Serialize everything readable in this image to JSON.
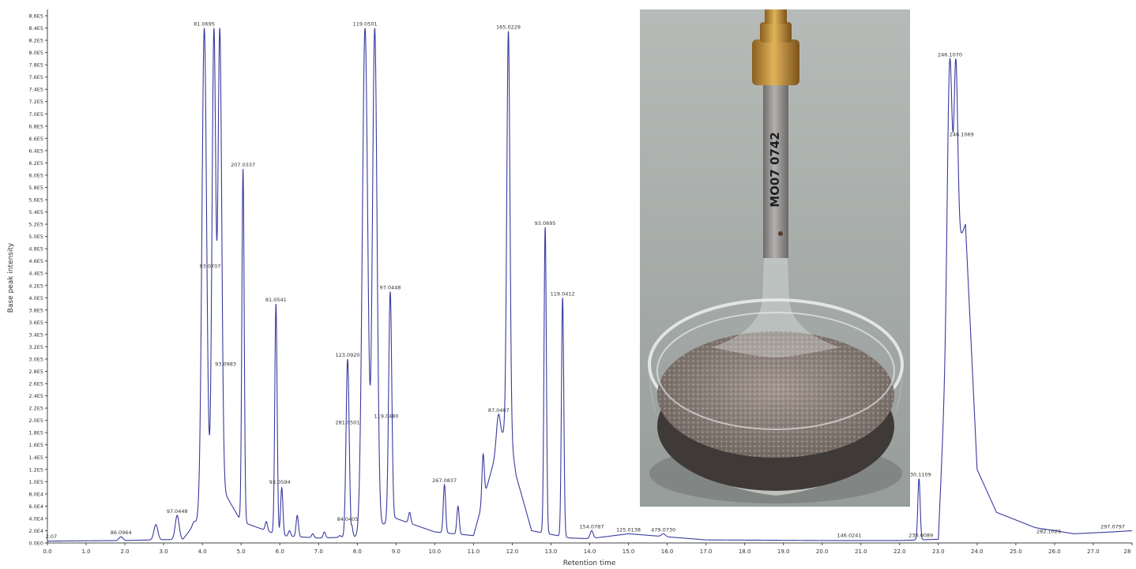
{
  "chart_data": {
    "type": "line",
    "title": "",
    "xlabel": "Retention time",
    "ylabel": "Base peak intensity",
    "xlim": [
      0.0,
      28.0
    ],
    "ylim": [
      0.0,
      8.6
    ],
    "y_unit_suffix": "E5",
    "grid": false,
    "line_color": "#3a3aa0",
    "x_ticks": [
      "0.0",
      "1.0",
      "2.0",
      "3.0",
      "4.0",
      "5.0",
      "6.0",
      "7.0",
      "8.0",
      "9.0",
      "10.0",
      "11.0",
      "12.0",
      "13.0",
      "14.0",
      "15.0",
      "16.0",
      "17.0",
      "18.0",
      "19.0",
      "20.0",
      "21.0",
      "22.0",
      "23.0",
      "24.0",
      "25.0",
      "26.0",
      "27.0",
      "28"
    ],
    "y_ticks": [
      "0.0E0",
      "2.0E4",
      "4.0E4",
      "6.0E4",
      "8.0E4",
      "1.0E5",
      "1.2E5",
      "1.4E5",
      "1.6E5",
      "1.8E5",
      "2.0E5",
      "2.2E5",
      "2.4E5",
      "2.6E5",
      "2.8E5",
      "3.0E5",
      "3.2E5",
      "3.4E5",
      "3.6E5",
      "3.8E5",
      "4.0E5",
      "4.2E5",
      "4.4E5",
      "4.6E5",
      "4.8E5",
      "5.0E5",
      "5.2E5",
      "5.4E5",
      "5.6E5",
      "5.8E5",
      "6.0E5",
      "6.2E5",
      "6.4E5",
      "6.6E5",
      "6.8E5",
      "7.0E5",
      "7.2E5",
      "7.4E5",
      "7.6E5",
      "7.8E5",
      "8.0E5",
      "8.2E5",
      "8.4E5",
      "8.6E5"
    ],
    "baseline": [
      [
        0.0,
        0.03
      ],
      [
        2.0,
        0.04
      ],
      [
        3.5,
        0.06
      ],
      [
        4.5,
        0.9
      ],
      [
        5.0,
        0.35
      ],
      [
        6.0,
        0.12
      ],
      [
        7.0,
        0.08
      ],
      [
        8.0,
        0.1
      ],
      [
        9.0,
        0.4
      ],
      [
        10.0,
        0.18
      ],
      [
        11.0,
        0.12
      ],
      [
        11.6,
        1.5
      ],
      [
        11.9,
        2.0
      ],
      [
        12.1,
        1.1
      ],
      [
        12.5,
        0.2
      ],
      [
        13.5,
        0.08
      ],
      [
        14.0,
        0.07
      ],
      [
        15.0,
        0.15
      ],
      [
        16.0,
        0.1
      ],
      [
        17.0,
        0.05
      ],
      [
        20.0,
        0.04
      ],
      [
        22.0,
        0.04
      ],
      [
        23.0,
        0.06
      ],
      [
        23.3,
        4.5
      ],
      [
        23.7,
        5.2
      ],
      [
        24.0,
        1.2
      ],
      [
        24.5,
        0.5
      ],
      [
        25.5,
        0.25
      ],
      [
        26.5,
        0.15
      ],
      [
        27.5,
        0.18
      ],
      [
        28.0,
        0.2
      ]
    ],
    "peaks": [
      {
        "x": 1.9,
        "y": 0.1,
        "w": 0.05
      },
      {
        "x": 2.8,
        "y": 0.3,
        "w": 0.05
      },
      {
        "x": 3.35,
        "y": 0.45,
        "w": 0.05
      },
      {
        "x": 3.8,
        "y": 0.35,
        "w": 0.04
      },
      {
        "x": 4.05,
        "y": 8.4,
        "w": 0.06
      },
      {
        "x": 4.3,
        "y": 8.4,
        "w": 0.05
      },
      {
        "x": 4.45,
        "y": 8.4,
        "w": 0.05
      },
      {
        "x": 5.05,
        "y": 6.1,
        "w": 0.03
      },
      {
        "x": 5.65,
        "y": 0.35,
        "w": 0.03
      },
      {
        "x": 5.9,
        "y": 3.9,
        "w": 0.03
      },
      {
        "x": 6.05,
        "y": 0.9,
        "w": 0.03
      },
      {
        "x": 6.25,
        "y": 0.2,
        "w": 0.03
      },
      {
        "x": 6.45,
        "y": 0.45,
        "w": 0.03
      },
      {
        "x": 6.85,
        "y": 0.15,
        "w": 0.03
      },
      {
        "x": 7.15,
        "y": 0.18,
        "w": 0.03
      },
      {
        "x": 7.55,
        "y": 0.12,
        "w": 0.03
      },
      {
        "x": 7.75,
        "y": 3.0,
        "w": 0.04
      },
      {
        "x": 7.85,
        "y": 0.3,
        "w": 0.03
      },
      {
        "x": 8.2,
        "y": 8.4,
        "w": 0.07
      },
      {
        "x": 8.45,
        "y": 8.4,
        "w": 0.06
      },
      {
        "x": 8.85,
        "y": 4.1,
        "w": 0.04
      },
      {
        "x": 9.35,
        "y": 0.5,
        "w": 0.03
      },
      {
        "x": 10.25,
        "y": 0.95,
        "w": 0.03
      },
      {
        "x": 10.6,
        "y": 0.6,
        "w": 0.03
      },
      {
        "x": 11.25,
        "y": 1.45,
        "w": 0.03
      },
      {
        "x": 11.65,
        "y": 2.1,
        "w": 0.05
      },
      {
        "x": 11.9,
        "y": 8.35,
        "w": 0.04
      },
      {
        "x": 12.05,
        "y": 0.7,
        "w": 0.03
      },
      {
        "x": 12.85,
        "y": 5.15,
        "w": 0.03
      },
      {
        "x": 13.3,
        "y": 4.0,
        "w": 0.03
      },
      {
        "x": 14.05,
        "y": 0.2,
        "w": 0.04
      },
      {
        "x": 15.9,
        "y": 0.15,
        "w": 0.05
      },
      {
        "x": 22.5,
        "y": 1.05,
        "w": 0.03
      },
      {
        "x": 23.3,
        "y": 7.9,
        "w": 0.06
      },
      {
        "x": 23.45,
        "y": 7.9,
        "w": 0.05
      },
      {
        "x": 25.85,
        "y": 0.12,
        "w": 0.05
      }
    ],
    "peak_labels": [
      {
        "x": 0.1,
        "y": 0.04,
        "text": "2.07"
      },
      {
        "x": 1.9,
        "y": 0.1,
        "text": "86.0964"
      },
      {
        "x": 3.35,
        "y": 0.45,
        "text": "97.0448"
      },
      {
        "x": 4.05,
        "y": 8.4,
        "text": "81.0695"
      },
      {
        "x": 4.2,
        "y": 4.45,
        "text": "93.0707"
      },
      {
        "x": 4.6,
        "y": 2.85,
        "text": "93.0983"
      },
      {
        "x": 5.05,
        "y": 6.1,
        "text": "207.0337"
      },
      {
        "x": 5.9,
        "y": 3.9,
        "text": "81.0541"
      },
      {
        "x": 6.0,
        "y": 0.93,
        "text": "93.0594"
      },
      {
        "x": 7.75,
        "y": 3.0,
        "text": "123.0920"
      },
      {
        "x": 7.75,
        "y": 1.9,
        "text": "281.0501"
      },
      {
        "x": 7.75,
        "y": 0.32,
        "text": "84.0405"
      },
      {
        "x": 8.2,
        "y": 8.4,
        "text": "119.0501"
      },
      {
        "x": 8.85,
        "y": 4.1,
        "text": "97.0448"
      },
      {
        "x": 8.75,
        "y": 2.0,
        "text": "119.0480"
      },
      {
        "x": 10.25,
        "y": 0.95,
        "text": "267.0837"
      },
      {
        "x": 11.65,
        "y": 2.1,
        "text": "87.0407"
      },
      {
        "x": 11.9,
        "y": 8.35,
        "text": "165.0229"
      },
      {
        "x": 12.85,
        "y": 5.15,
        "text": "93.0695"
      },
      {
        "x": 13.3,
        "y": 4.0,
        "text": "119.0412"
      },
      {
        "x": 14.05,
        "y": 0.2,
        "text": "154.0787"
      },
      {
        "x": 15.0,
        "y": 0.15,
        "text": "125.0138"
      },
      {
        "x": 15.9,
        "y": 0.15,
        "text": "479.0730"
      },
      {
        "x": 20.7,
        "y": 0.06,
        "text": "146.0241"
      },
      {
        "x": 22.5,
        "y": 1.05,
        "text": "230.1109"
      },
      {
        "x": 22.55,
        "y": 0.06,
        "text": "230.0089"
      },
      {
        "x": 23.3,
        "y": 7.9,
        "text": "246.1070"
      },
      {
        "x": 23.6,
        "y": 6.6,
        "text": "246.1069"
      },
      {
        "x": 25.85,
        "y": 0.12,
        "text": "282.1026"
      },
      {
        "x": 27.5,
        "y": 0.2,
        "text": "297.0797"
      }
    ]
  },
  "photo": {
    "tube_marking": "MO07 0742",
    "background_color": "#a4aaa6",
    "fitting_color": "#c8953a",
    "steel_color": "#8d8b8a",
    "powder_color": "#8a7e78"
  }
}
